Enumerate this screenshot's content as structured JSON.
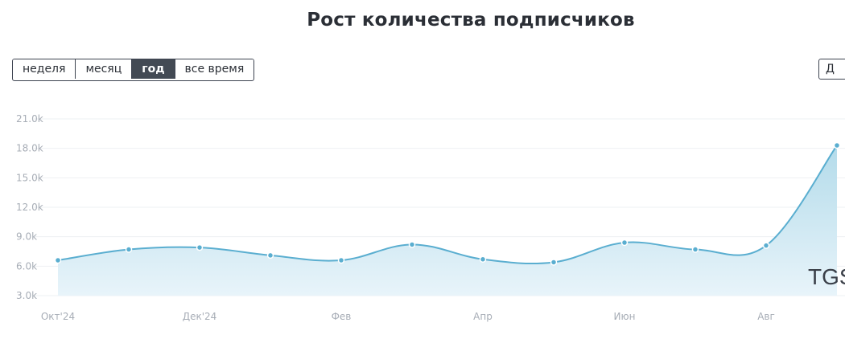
{
  "title": "Рост количества подписчиков",
  "range_buttons": [
    {
      "label": "неделя",
      "active": false
    },
    {
      "label": "месяц",
      "active": false
    },
    {
      "label": "год",
      "active": true
    },
    {
      "label": "все время",
      "active": false
    }
  ],
  "right_button_label": "Д",
  "watermark": "TGS",
  "colors": {
    "line": "#5aaed0",
    "area_top": "#b3dbea",
    "area_bottom": "#e8f4fa",
    "grid": "#eef0f3"
  },
  "chart_data": {
    "type": "area",
    "x_labels": [
      "Окт'24",
      "Дек'24",
      "Фев",
      "Апр",
      "Июн",
      "Авг"
    ],
    "y_ticks": [
      "3.0k",
      "6.0k",
      "9.0k",
      "12.0k",
      "15.0k",
      "18.0k",
      "21.0k"
    ],
    "ylim": [
      3000,
      21000
    ],
    "points": [
      6600,
      7700,
      7900,
      7100,
      6600,
      8200,
      6700,
      6400,
      8400,
      7700,
      8100,
      18300
    ],
    "grid": true,
    "legend": "none"
  }
}
